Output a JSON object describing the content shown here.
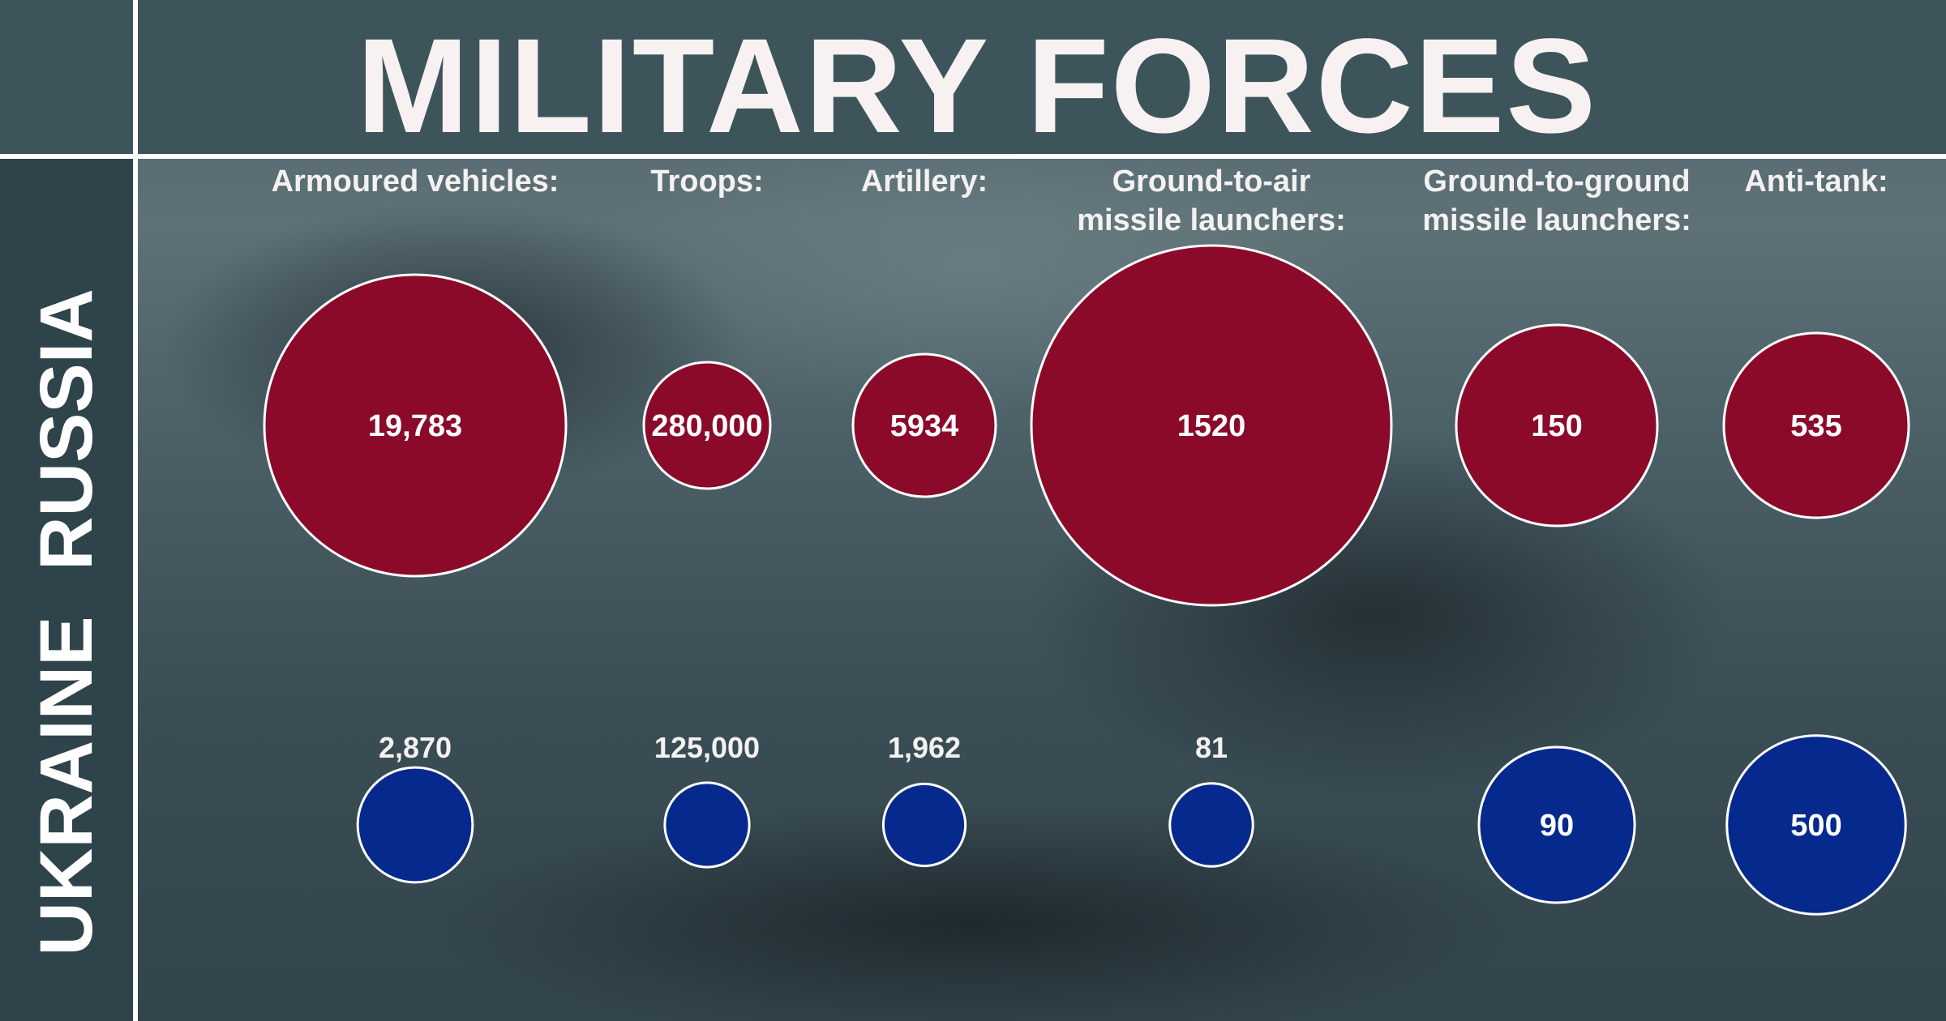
{
  "title": "MILITARY FORCES",
  "rows": {
    "top": "RUSSIA",
    "bottom": "UKRAINE"
  },
  "colors": {
    "russia": "#8b0a2a",
    "ukraine": "#05298c",
    "outline": "#ffffff",
    "text": "#ffffff"
  },
  "chart_data": {
    "type": "bubble",
    "categories": [
      [
        "Armoured vehicles:"
      ],
      [
        "Troops:"
      ],
      [
        "Artillery:"
      ],
      [
        "Ground-to-air",
        "missile launchers:"
      ],
      [
        "Ground-to-ground",
        "missile launchers:"
      ],
      [
        "Anti-tank:"
      ]
    ],
    "series": [
      {
        "name": "RUSSIA",
        "values": [
          19783,
          280000,
          5934,
          1520,
          150,
          535
        ],
        "labels": [
          "19,783",
          "280,000",
          "5934",
          "1520",
          "150",
          "535"
        ]
      },
      {
        "name": "UKRAINE",
        "values": [
          2870,
          125000,
          1962,
          81,
          90,
          500
        ],
        "labels": [
          "2,870",
          "125,000",
          "1,962",
          "81",
          "90",
          "500"
        ]
      }
    ]
  }
}
